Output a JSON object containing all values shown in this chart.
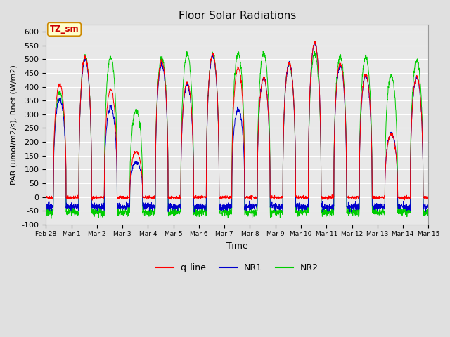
{
  "title": "Floor Solar Radiations",
  "xlabel": "Time",
  "ylabel": "PAR (umol/m2/s), Rnet (W/m2)",
  "ylim": [
    -100,
    625
  ],
  "yticks": [
    -100,
    -50,
    0,
    50,
    100,
    150,
    200,
    250,
    300,
    350,
    400,
    450,
    500,
    550,
    600
  ],
  "num_days": 15,
  "bg_color": "#e0e0e0",
  "plot_bg_color": "#e8e8e8",
  "legend_entries": [
    "q_line",
    "NR1",
    "NR2"
  ],
  "legend_colors": [
    "#ff0000",
    "#0000cc",
    "#00cc00"
  ],
  "annotation_text": "TZ_sm",
  "annotation_color": "#cc0000",
  "annotation_bg": "#ffffcc",
  "annotation_border": "#cc8800",
  "xtick_labels": [
    "Feb 28",
    "Mar 1",
    "Mar 2",
    "Mar 3",
    "Mar 4",
    "Mar 5",
    "Mar 6",
    "Mar 7",
    "Mar 8",
    "Mar 9",
    "Mar 10",
    "Mar 11",
    "Mar 12",
    "Mar 13",
    "Mar 14",
    "Mar 15"
  ],
  "day_peaks_q": [
    410,
    508,
    390,
    165,
    493,
    415,
    518,
    468,
    430,
    485,
    560,
    483,
    445,
    228,
    438
  ],
  "day_peaks_nr1": [
    355,
    500,
    325,
    127,
    480,
    408,
    512,
    318,
    430,
    484,
    556,
    478,
    440,
    230,
    435
  ],
  "day_peaks_nr2": [
    380,
    508,
    508,
    315,
    505,
    520,
    518,
    522,
    522,
    484,
    522,
    508,
    508,
    440,
    497
  ],
  "night_q": -2,
  "night_nr1": -35,
  "night_nr2": -55,
  "pts_per_day": 144
}
